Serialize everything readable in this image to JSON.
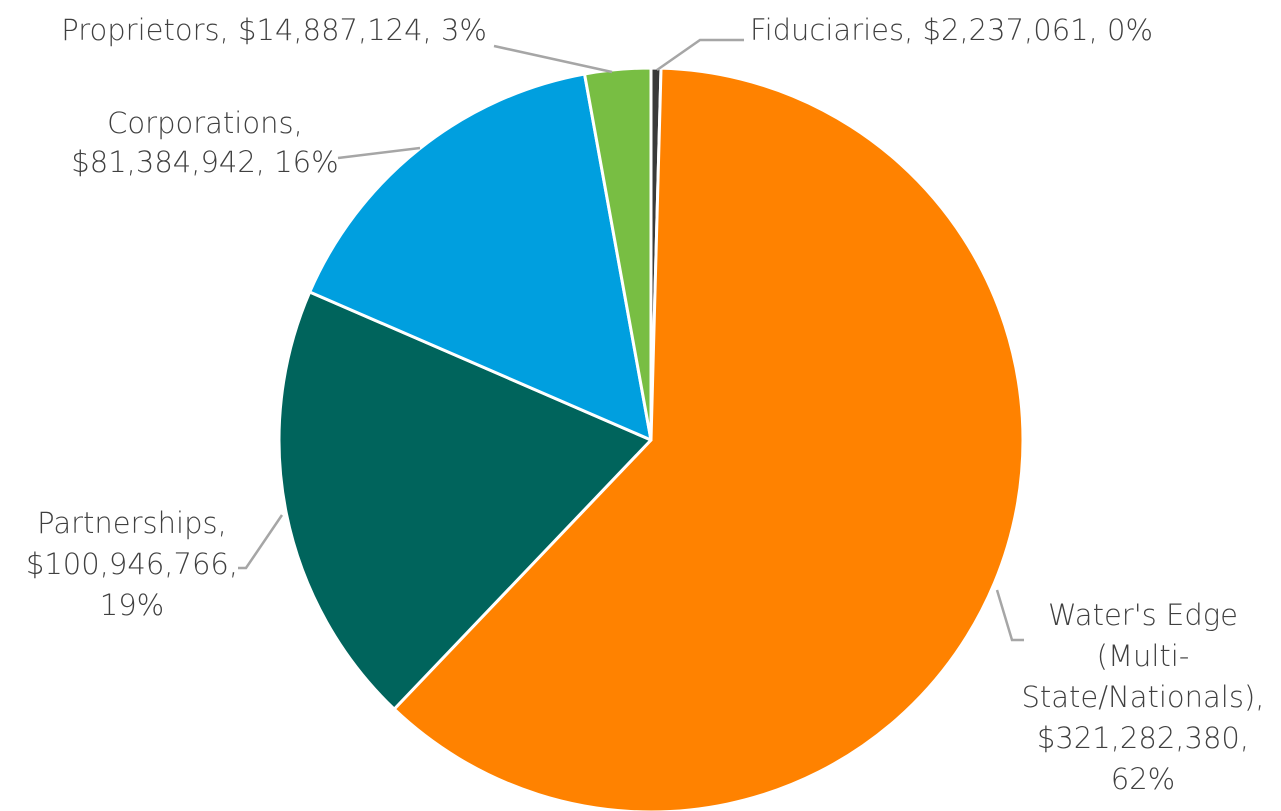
{
  "chart_data": {
    "type": "pie",
    "labels": [
      [
        "Fiduciaries, $2,237,061, 0%"
      ],
      [
        "Water's Edge",
        "(Multi-",
        "State/Nationals),",
        "$321,282,380,",
        "62%"
      ],
      [
        "Partnerships,",
        "$100,946,766,",
        "19%"
      ],
      [
        "Corporations,",
        "$81,384,942, 16%"
      ],
      [
        "Proprietors, $14,887,124, 3%"
      ]
    ],
    "values": [
      2237061,
      321282380,
      100946766,
      81384942,
      14887124
    ],
    "value_labels": null,
    "colors": [
      "#3a3a3a",
      "#ff8200",
      "#00645c",
      "#009fdf",
      "#78be43"
    ]
  }
}
